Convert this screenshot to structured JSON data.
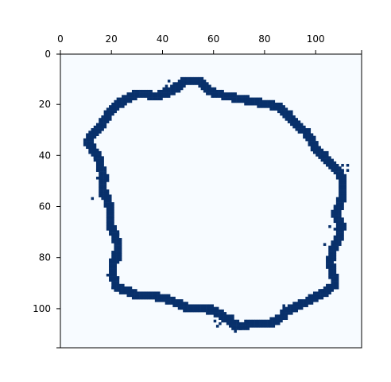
{
  "chart_data": {
    "type": "heatmap",
    "title": "",
    "xlabel": "",
    "ylabel": "",
    "xlim": [
      0,
      118
    ],
    "ylim": [
      115,
      0
    ],
    "x_ticks": [
      0,
      20,
      40,
      60,
      80,
      100
    ],
    "y_ticks": [
      0,
      20,
      40,
      60,
      80,
      100
    ],
    "x_tick_labels": [
      "0",
      "20",
      "40",
      "60",
      "80",
      "100"
    ],
    "y_tick_labels": [
      "0",
      "20",
      "40",
      "60",
      "80",
      "100"
    ],
    "x_axis_position": "top",
    "grid": false,
    "legend": "none",
    "colormap": "Blues",
    "background_color": "#f7fbff",
    "mark_color": "#08306b",
    "description_of_values": "binary image: boundary pixels = 1 (dark), others = 0",
    "outline_points": [
      [
        48,
        10
      ],
      [
        53,
        10
      ],
      [
        56,
        12
      ],
      [
        60,
        15
      ],
      [
        65,
        16
      ],
      [
        70,
        17
      ],
      [
        75,
        18
      ],
      [
        80,
        19
      ],
      [
        85,
        20
      ],
      [
        88,
        23
      ],
      [
        91,
        26
      ],
      [
        94,
        29
      ],
      [
        97,
        32
      ],
      [
        99,
        36
      ],
      [
        102,
        39
      ],
      [
        105,
        42
      ],
      [
        108,
        45
      ],
      [
        110,
        49
      ],
      [
        110,
        53
      ],
      [
        109,
        58
      ],
      [
        107,
        62
      ],
      [
        109,
        66
      ],
      [
        109,
        71
      ],
      [
        106,
        76
      ],
      [
        105,
        81
      ],
      [
        106,
        85
      ],
      [
        107,
        89
      ],
      [
        104,
        92
      ],
      [
        99,
        95
      ],
      [
        94,
        97
      ],
      [
        90,
        99
      ],
      [
        87,
        101
      ],
      [
        84,
        104
      ],
      [
        80,
        105
      ],
      [
        75,
        105
      ],
      [
        70,
        106
      ],
      [
        66,
        104
      ],
      [
        63,
        102
      ],
      [
        60,
        100
      ],
      [
        55,
        99
      ],
      [
        50,
        99
      ],
      [
        45,
        97
      ],
      [
        40,
        95
      ],
      [
        35,
        94
      ],
      [
        30,
        94
      ],
      [
        25,
        92
      ],
      [
        21,
        90
      ],
      [
        20,
        86
      ],
      [
        20,
        82
      ],
      [
        21,
        79
      ],
      [
        22,
        75
      ],
      [
        21,
        71
      ],
      [
        19,
        67
      ],
      [
        19,
        62
      ],
      [
        18,
        57
      ],
      [
        16,
        53
      ],
      [
        16,
        47
      ],
      [
        15,
        42
      ],
      [
        13,
        38
      ],
      [
        10,
        34
      ],
      [
        12,
        31
      ],
      [
        15,
        28
      ],
      [
        17,
        25
      ],
      [
        19,
        22
      ],
      [
        22,
        19
      ],
      [
        25,
        17
      ],
      [
        29,
        15
      ],
      [
        33,
        15
      ],
      [
        37,
        16
      ],
      [
        41,
        14
      ],
      [
        45,
        13
      ],
      [
        48,
        10
      ]
    ],
    "stray_pixels": [
      [
        42,
        10
      ],
      [
        44,
        11
      ],
      [
        41,
        12
      ],
      [
        13,
        40
      ],
      [
        14,
        45
      ],
      [
        14,
        48
      ],
      [
        15,
        55
      ],
      [
        12,
        56
      ],
      [
        21,
        68
      ],
      [
        22,
        70
      ],
      [
        18,
        86
      ],
      [
        22,
        87
      ],
      [
        20,
        91
      ],
      [
        110,
        43
      ],
      [
        112,
        43
      ],
      [
        110,
        45
      ],
      [
        112,
        45
      ],
      [
        105,
        67
      ],
      [
        107,
        68
      ],
      [
        103,
        74
      ],
      [
        106,
        74
      ],
      [
        107,
        75
      ],
      [
        102,
        92
      ],
      [
        105,
        93
      ],
      [
        87,
        98
      ],
      [
        87,
        100
      ],
      [
        60,
        104
      ],
      [
        62,
        105
      ],
      [
        61,
        106
      ],
      [
        67,
        107
      ],
      [
        68,
        108
      ],
      [
        70,
        107
      ]
    ]
  }
}
